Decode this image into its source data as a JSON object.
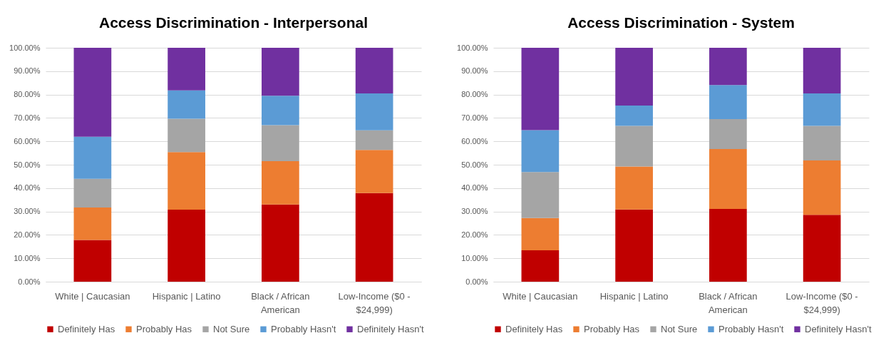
{
  "chart_data": [
    {
      "type": "bar",
      "stacked": true,
      "title": "Access Discrimination - Interpersonal",
      "categories": [
        "White | Caucasian",
        "Hispanic | Latino",
        "Black / African American",
        "Low-Income ($0 - $24,999)"
      ],
      "series": [
        {
          "name": "Definitely Has",
          "color": "#c00000",
          "values": [
            17.8,
            30.8,
            33.0,
            37.9
          ]
        },
        {
          "name": "Probably Has",
          "color": "#ed7d31",
          "values": [
            13.9,
            24.6,
            18.5,
            18.4
          ]
        },
        {
          "name": "Not Sure",
          "color": "#a5a5a5",
          "values": [
            12.3,
            14.3,
            15.4,
            8.4
          ]
        },
        {
          "name": "Probably Hasn't",
          "color": "#5b9bd5",
          "values": [
            18.0,
            12.1,
            12.6,
            15.8
          ]
        },
        {
          "name": "Definitely Hasn't",
          "color": "#7030a0",
          "values": [
            38.0,
            18.2,
            20.5,
            19.5
          ]
        }
      ],
      "ylim": [
        0,
        100
      ],
      "yticks": [
        {
          "value": 0,
          "label": "0.00%"
        },
        {
          "value": 10,
          "label": "10.00%"
        },
        {
          "value": 20,
          "label": "20.00%"
        },
        {
          "value": 30,
          "label": "30.00%"
        },
        {
          "value": 40,
          "label": "40.00%"
        },
        {
          "value": 50,
          "label": "50.00%"
        },
        {
          "value": 60,
          "label": "60.00%"
        },
        {
          "value": 70,
          "label": "70.00%"
        },
        {
          "value": 80,
          "label": "80.00%"
        },
        {
          "value": 90,
          "label": "90.00%"
        },
        {
          "value": 100,
          "label": "100.00%"
        }
      ],
      "grid": "y",
      "legend": "bottom"
    },
    {
      "type": "bar",
      "stacked": true,
      "title": "Access Discrimination - System",
      "categories": [
        "White | Caucasian",
        "Hispanic | Latino",
        "Black / African American",
        "Low-Income ($0 - $24,999)"
      ],
      "series": [
        {
          "name": "Definitely Has",
          "color": "#c00000",
          "values": [
            13.4,
            30.9,
            31.1,
            28.6
          ]
        },
        {
          "name": "Probably Has",
          "color": "#ed7d31",
          "values": [
            13.8,
            18.3,
            25.6,
            23.2
          ]
        },
        {
          "name": "Not Sure",
          "color": "#a5a5a5",
          "values": [
            19.7,
            17.4,
            12.8,
            14.8
          ]
        },
        {
          "name": "Probably Hasn't",
          "color": "#5b9bd5",
          "values": [
            17.9,
            8.7,
            14.6,
            13.9
          ]
        },
        {
          "name": "Definitely Hasn't",
          "color": "#7030a0",
          "values": [
            35.2,
            24.7,
            15.9,
            19.5
          ]
        }
      ],
      "ylim": [
        0,
        100
      ],
      "yticks": [
        {
          "value": 0,
          "label": "0.00%"
        },
        {
          "value": 10,
          "label": "10.00%"
        },
        {
          "value": 20,
          "label": "20.00%"
        },
        {
          "value": 30,
          "label": "30.00%"
        },
        {
          "value": 40,
          "label": "40.00%"
        },
        {
          "value": 50,
          "label": "50.00%"
        },
        {
          "value": 60,
          "label": "60.00%"
        },
        {
          "value": 70,
          "label": "70.00%"
        },
        {
          "value": 80,
          "label": "80.00%"
        },
        {
          "value": 90,
          "label": "90.00%"
        },
        {
          "value": 100,
          "label": "100.00%"
        }
      ],
      "grid": "y",
      "legend": "bottom"
    }
  ]
}
